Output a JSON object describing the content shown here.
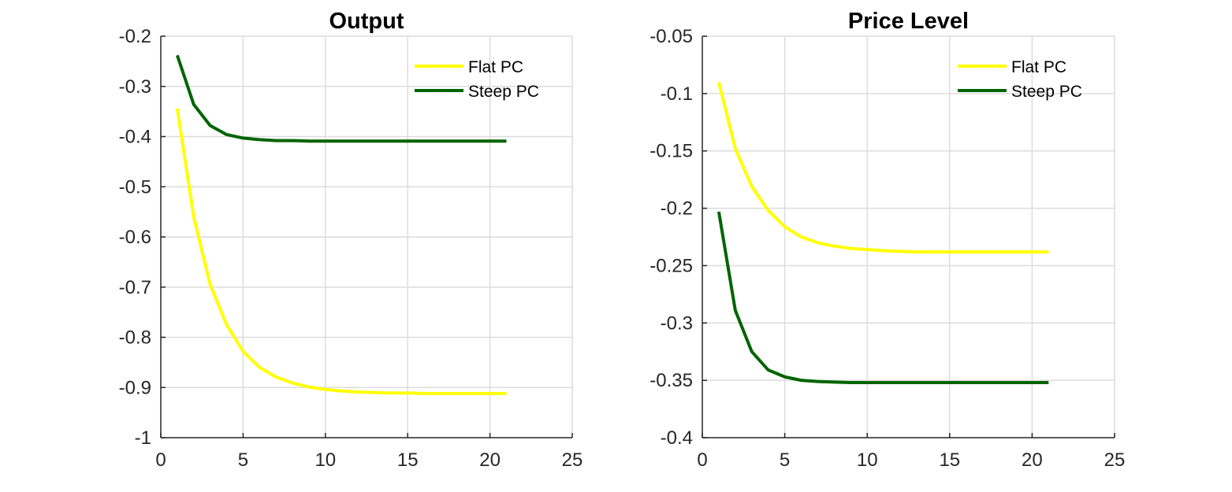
{
  "chart_data": [
    {
      "type": "line",
      "title": "Output",
      "xlabel": "",
      "ylabel": "",
      "xlim": [
        0,
        25
      ],
      "ylim": [
        -1,
        -0.2
      ],
      "xticks": [
        "0",
        "5",
        "10",
        "15",
        "20",
        "25"
      ],
      "yticks": [
        "-1",
        "-0.9",
        "-0.8",
        "-0.7",
        "-0.6",
        "-0.5",
        "-0.4",
        "-0.3",
        "-0.2"
      ],
      "grid": true,
      "legend_position": "top-right",
      "x": [
        1,
        2,
        3,
        4,
        5,
        6,
        7,
        8,
        9,
        10,
        11,
        12,
        13,
        14,
        15,
        16,
        17,
        18,
        19,
        20,
        21
      ],
      "series": [
        {
          "name": "Flat PC",
          "color": "#ffff00",
          "values": [
            -0.344,
            -0.56,
            -0.695,
            -0.775,
            -0.828,
            -0.86,
            -0.879,
            -0.891,
            -0.899,
            -0.904,
            -0.907,
            -0.909,
            -0.91,
            -0.911,
            -0.911,
            -0.912,
            -0.912,
            -0.912,
            -0.912,
            -0.912,
            -0.912
          ]
        },
        {
          "name": "Steep PC",
          "color": "#006400",
          "values": [
            -0.238,
            -0.336,
            -0.378,
            -0.396,
            -0.403,
            -0.406,
            -0.408,
            -0.408,
            -0.409,
            -0.409,
            -0.409,
            -0.409,
            -0.409,
            -0.409,
            -0.409,
            -0.409,
            -0.409,
            -0.409,
            -0.409,
            -0.409,
            -0.409
          ]
        }
      ]
    },
    {
      "type": "line",
      "title": "Price Level",
      "xlabel": "",
      "ylabel": "",
      "xlim": [
        0,
        25
      ],
      "ylim": [
        -0.4,
        -0.05
      ],
      "xticks": [
        "0",
        "5",
        "10",
        "15",
        "20",
        "25"
      ],
      "yticks": [
        "-0.4",
        "-0.35",
        "-0.3",
        "-0.25",
        "-0.2",
        "-0.15",
        "-0.1",
        "-0.05"
      ],
      "grid": true,
      "legend_position": "top-right",
      "x": [
        1,
        2,
        3,
        4,
        5,
        6,
        7,
        8,
        9,
        10,
        11,
        12,
        13,
        14,
        15,
        16,
        17,
        18,
        19,
        20,
        21
      ],
      "series": [
        {
          "name": "Flat PC",
          "color": "#ffff00",
          "values": [
            -0.09,
            -0.148,
            -0.181,
            -0.202,
            -0.216,
            -0.225,
            -0.23,
            -0.233,
            -0.235,
            -0.236,
            -0.237,
            -0.2375,
            -0.238,
            -0.238,
            -0.238,
            -0.238,
            -0.238,
            -0.238,
            -0.238,
            -0.238,
            -0.238
          ]
        },
        {
          "name": "Steep PC",
          "color": "#006400",
          "values": [
            -0.203,
            -0.289,
            -0.325,
            -0.341,
            -0.347,
            -0.35,
            -0.351,
            -0.3515,
            -0.352,
            -0.352,
            -0.352,
            -0.352,
            -0.352,
            -0.352,
            -0.352,
            -0.352,
            -0.352,
            -0.352,
            -0.352,
            -0.352,
            -0.352
          ]
        }
      ]
    }
  ]
}
